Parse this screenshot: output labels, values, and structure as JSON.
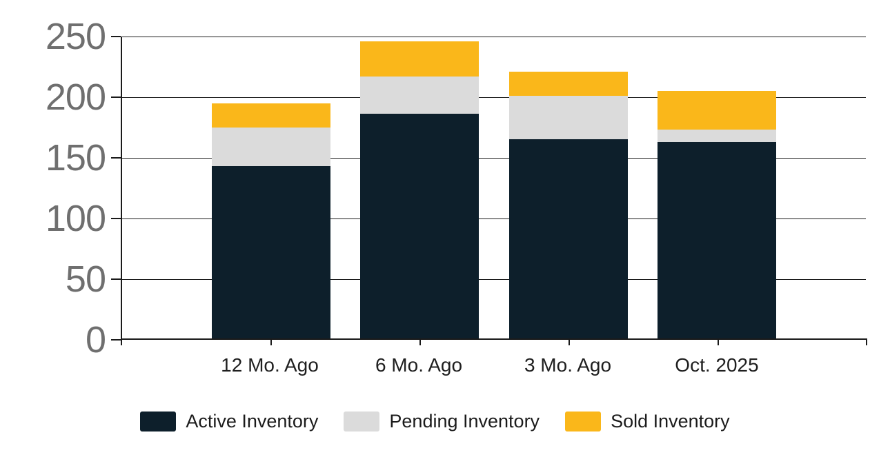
{
  "chart_data": {
    "type": "bar",
    "stacked": true,
    "title": "",
    "xlabel": "",
    "ylabel": "",
    "categories": [
      "12 Mo. Ago",
      "6 Mo. Ago",
      "3 Mo. Ago",
      "Oct. 2025"
    ],
    "series": [
      {
        "name": "Active Inventory",
        "color": "#0d1f2b",
        "values": [
          142,
          185,
          164,
          162
        ]
      },
      {
        "name": "Pending Inventory",
        "color": "#dbdbdb",
        "values": [
          32,
          31,
          36,
          10
        ]
      },
      {
        "name": "Sold Inventory",
        "color": "#fab71a",
        "values": [
          20,
          29,
          20,
          32
        ]
      }
    ],
    "stack_totals": [
      194,
      245,
      220,
      204
    ],
    "y_ticks": [
      0,
      50,
      100,
      150,
      200,
      250
    ],
    "ylim": [
      0,
      250
    ],
    "grid": true,
    "gridline_color": "#1a1a1a",
    "axis_label_color": "#6f6f6f",
    "category_label_color": "#1f1f1f",
    "legend_position": "bottom"
  }
}
